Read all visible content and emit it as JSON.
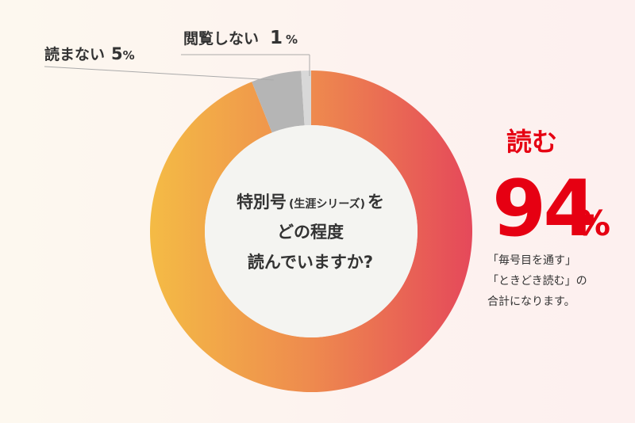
{
  "colors": {
    "donut_start": "#f4bb45",
    "donut_mid": "#ee8a4e",
    "donut_end": "#e5485a",
    "gray_slice": "#b5b5b5",
    "light_slice": "#d8d8d8",
    "center_fill": "#f4f4f1",
    "accent_red": "#e60012",
    "text": "#333333"
  },
  "chart_data": {
    "type": "pie",
    "donut": true,
    "slices": [
      {
        "label": "読む",
        "value": 94
      },
      {
        "label": "読まない",
        "value": 5
      },
      {
        "label": "閲覧しない",
        "value": 1
      }
    ],
    "center_title": {
      "line1_main": "特別号",
      "line1_paren": "(生涯シリーズ)",
      "line1_tail": "を",
      "line2": "どの程度",
      "line3": "読んでいますか?"
    },
    "labels": {
      "not_read_text": "読まない",
      "not_read_value": "5",
      "not_read_unit": "%",
      "no_browse_text": "閲覧しない",
      "no_browse_value": "1",
      "no_browse_unit": "%"
    },
    "highlight": {
      "title": "読む",
      "value": "94",
      "unit": "%",
      "note_line1": "「毎号目を通す」",
      "note_line2": "「ときどき読む」の",
      "note_line3": "合計になります。"
    }
  }
}
